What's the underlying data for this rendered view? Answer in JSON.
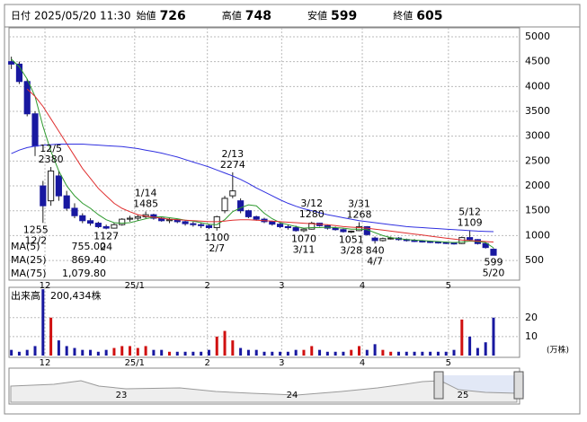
{
  "header": [
    {
      "label": "日付",
      "value": "2025/05/20 11:30"
    },
    {
      "label": "始値",
      "value": 726,
      "color": "#000"
    },
    {
      "label": "高値",
      "value": 748,
      "color": "#e00000"
    },
    {
      "label": "安値",
      "value": 599,
      "color": "#008000"
    },
    {
      "label": "終値",
      "value": 605,
      "color": "#000"
    }
  ],
  "chart_data": {
    "type": "candlestick",
    "ylim": [
      104,
      5180
    ],
    "yticks": [
      500,
      1000,
      1500,
      2000,
      2500,
      3000,
      3500,
      4000,
      4500,
      5000
    ],
    "xlim": [
      -0.3,
      64.3
    ],
    "xticks": [
      {
        "value": 4.25,
        "label": "12"
      },
      {
        "value": 15.6,
        "label": "25/1"
      },
      {
        "value": 24.8,
        "label": "2"
      },
      {
        "value": 34.2,
        "label": "3"
      },
      {
        "value": 44.4,
        "label": "4"
      },
      {
        "value": 55.3,
        "label": "5"
      }
    ],
    "up_color": "#ffffff",
    "down_color": "#1818a0",
    "candles": [
      [
        4500,
        4600,
        4350,
        4450
      ],
      [
        4450,
        4500,
        4050,
        4100
      ],
      [
        4100,
        4150,
        3400,
        3450
      ],
      [
        3450,
        3500,
        2600,
        2800
      ],
      [
        2000,
        2100,
        1255,
        1600
      ],
      [
        1700,
        2380,
        1600,
        2300
      ],
      [
        2200,
        2300,
        1700,
        1800
      ],
      [
        1800,
        1900,
        1500,
        1550
      ],
      [
        1550,
        1650,
        1350,
        1400
      ],
      [
        1400,
        1450,
        1250,
        1300
      ],
      [
        1300,
        1350,
        1200,
        1250
      ],
      [
        1250,
        1280,
        1150,
        1180
      ],
      [
        1180,
        1220,
        1127,
        1150
      ],
      [
        1150,
        1250,
        1140,
        1220
      ],
      [
        1220,
        1350,
        1200,
        1330
      ],
      [
        1330,
        1400,
        1280,
        1350
      ],
      [
        1350,
        1420,
        1300,
        1380
      ],
      [
        1380,
        1485,
        1350,
        1420
      ],
      [
        1420,
        1440,
        1320,
        1350
      ],
      [
        1350,
        1380,
        1280,
        1300
      ],
      [
        1300,
        1350,
        1250,
        1320
      ],
      [
        1320,
        1340,
        1250,
        1280
      ],
      [
        1280,
        1300,
        1200,
        1240
      ],
      [
        1240,
        1280,
        1180,
        1220
      ],
      [
        1220,
        1250,
        1150,
        1200
      ],
      [
        1200,
        1230,
        1130,
        1160
      ],
      [
        1160,
        1400,
        1100,
        1380
      ],
      [
        1500,
        1800,
        1450,
        1750
      ],
      [
        1800,
        2274,
        1750,
        1900
      ],
      [
        1700,
        1750,
        1450,
        1500
      ],
      [
        1500,
        1520,
        1350,
        1380
      ],
      [
        1380,
        1400,
        1300,
        1330
      ],
      [
        1330,
        1360,
        1250,
        1280
      ],
      [
        1280,
        1300,
        1200,
        1230
      ],
      [
        1230,
        1260,
        1150,
        1180
      ],
      [
        1180,
        1220,
        1120,
        1160
      ],
      [
        1160,
        1200,
        1080,
        1100
      ],
      [
        1100,
        1150,
        1070,
        1130
      ],
      [
        1130,
        1280,
        1120,
        1250
      ],
      [
        1250,
        1260,
        1180,
        1200
      ],
      [
        1200,
        1220,
        1120,
        1150
      ],
      [
        1150,
        1180,
        1100,
        1120
      ],
      [
        1120,
        1140,
        1060,
        1080
      ],
      [
        1080,
        1100,
        1051,
        1090
      ],
      [
        1100,
        1268,
        1090,
        1180
      ],
      [
        1180,
        1190,
        1000,
        1020
      ],
      [
        950,
        980,
        840,
        900
      ],
      [
        900,
        960,
        880,
        940
      ],
      [
        940,
        980,
        920,
        950
      ],
      [
        950,
        970,
        900,
        920
      ],
      [
        920,
        940,
        880,
        900
      ],
      [
        900,
        930,
        870,
        890
      ],
      [
        890,
        910,
        860,
        880
      ],
      [
        880,
        900,
        850,
        870
      ],
      [
        870,
        890,
        840,
        860
      ],
      [
        860,
        880,
        830,
        850
      ],
      [
        850,
        870,
        820,
        840
      ],
      [
        840,
        980,
        830,
        960
      ],
      [
        960,
        1109,
        900,
        920
      ],
      [
        920,
        930,
        820,
        840
      ],
      [
        840,
        850,
        740,
        760
      ],
      [
        726,
        748,
        599,
        605
      ]
    ],
    "series": [
      {
        "name": "MA(5)",
        "color": "#2e9a2e",
        "value_label": "755.00",
        "values": [
          4550,
          4400,
          4150,
          3800,
          3200,
          2700,
          2300,
          2000,
          1800,
          1650,
          1550,
          1420,
          1320,
          1260,
          1250,
          1260,
          1300,
          1340,
          1370,
          1380,
          1360,
          1340,
          1310,
          1290,
          1260,
          1230,
          1220,
          1320,
          1480,
          1560,
          1620,
          1600,
          1450,
          1340,
          1260,
          1220,
          1180,
          1150,
          1160,
          1160,
          1170,
          1160,
          1150,
          1130,
          1130,
          1120,
          1060,
          1000,
          960,
          940,
          920,
          910,
          900,
          890,
          880,
          870,
          860,
          870,
          890,
          880,
          860,
          755
        ]
      },
      {
        "name": "MA(25)",
        "color": "#e03030",
        "value_label": "869.40",
        "values": [
          null,
          null,
          3950,
          3800,
          3600,
          3350,
          3100,
          2850,
          2600,
          2350,
          2150,
          1950,
          1800,
          1650,
          1550,
          1480,
          1420,
          1390,
          1370,
          1350,
          1330,
          1320,
          1310,
          1300,
          1290,
          1280,
          1280,
          1290,
          1310,
          1320,
          1320,
          1310,
          1300,
          1290,
          1280,
          1270,
          1260,
          1250,
          1240,
          1230,
          1220,
          1200,
          1180,
          1170,
          1160,
          1150,
          1130,
          1110,
          1090,
          1070,
          1050,
          1030,
          1010,
          990,
          970,
          950,
          930,
          910,
          900,
          890,
          880,
          869.4
        ]
      },
      {
        "name": "MA(75)",
        "color": "#3030e0",
        "value_label": "1,079.80",
        "values": [
          2650,
          2720,
          2770,
          2800,
          2820,
          2830,
          2840,
          2840,
          2840,
          2840,
          2830,
          2820,
          2810,
          2800,
          2790,
          2770,
          2750,
          2720,
          2690,
          2660,
          2620,
          2580,
          2530,
          2480,
          2430,
          2380,
          2320,
          2260,
          2200,
          2130,
          2050,
          1960,
          1880,
          1800,
          1720,
          1650,
          1590,
          1540,
          1500,
          1460,
          1420,
          1390,
          1360,
          1330,
          1300,
          1280,
          1260,
          1240,
          1220,
          1200,
          1180,
          1170,
          1160,
          1150,
          1140,
          1130,
          1120,
          1110,
          1100,
          1090,
          1085,
          1079.8
        ]
      }
    ],
    "annotations": [
      {
        "date": "12/5",
        "value": 2380
      },
      {
        "date": "12/2",
        "value": 1255
      },
      {
        "date": "24",
        "value": 1127
      },
      {
        "date": "1/14",
        "value": 1485
      },
      {
        "date": "2/7",
        "value": 1100
      },
      {
        "date": "2/13",
        "value": 2274
      },
      {
        "date": "3/12",
        "value": 1280
      },
      {
        "date": "3/11",
        "value": 1070
      },
      {
        "date": "3/31",
        "value": 1268
      },
      {
        "date": "3/28",
        "value": 1051
      },
      {
        "date": "4/7",
        "value": 840
      },
      {
        "date": "5/12",
        "value": 1109
      },
      {
        "date": "5/20",
        "value": 599
      }
    ],
    "volume": {
      "title": "出来高",
      "total": "200,434株",
      "unit": "(万株)",
      "ylim": [
        0,
        36
      ],
      "yticks": [
        10,
        20
      ],
      "up_color": "#d01010",
      "down_color": "#1818a0",
      "values": [
        3,
        2,
        3,
        5,
        35,
        20,
        8,
        5,
        4,
        3,
        3,
        2,
        3,
        4,
        5,
        5,
        4,
        5,
        3,
        3,
        2,
        2,
        2,
        2,
        2,
        3,
        10,
        13,
        8,
        4,
        3,
        3,
        2,
        2,
        2,
        2,
        3,
        3,
        5,
        3,
        2,
        2,
        2,
        3,
        5,
        3,
        6,
        3,
        2,
        2,
        2,
        2,
        2,
        2,
        2,
        2,
        3,
        19,
        10,
        4,
        7,
        20
      ]
    }
  },
  "navigator": {
    "labels": [
      "23",
      "24",
      "25"
    ]
  }
}
